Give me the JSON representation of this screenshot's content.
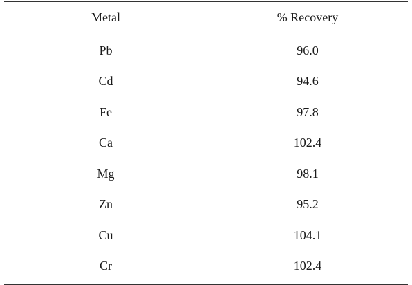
{
  "table": {
    "headers": {
      "metal": "Metal",
      "recovery": "% Recovery"
    },
    "rows": [
      {
        "metal": "Pb",
        "recovery": "96.0"
      },
      {
        "metal": "Cd",
        "recovery": "94.6"
      },
      {
        "metal": "Fe",
        "recovery": "97.8"
      },
      {
        "metal": "Ca",
        "recovery": "102.4"
      },
      {
        "metal": "Mg",
        "recovery": "98.1"
      },
      {
        "metal": "Zn",
        "recovery": "95.2"
      },
      {
        "metal": "Cu",
        "recovery": "104.1"
      },
      {
        "metal": "Cr",
        "recovery": "102.4"
      }
    ]
  }
}
